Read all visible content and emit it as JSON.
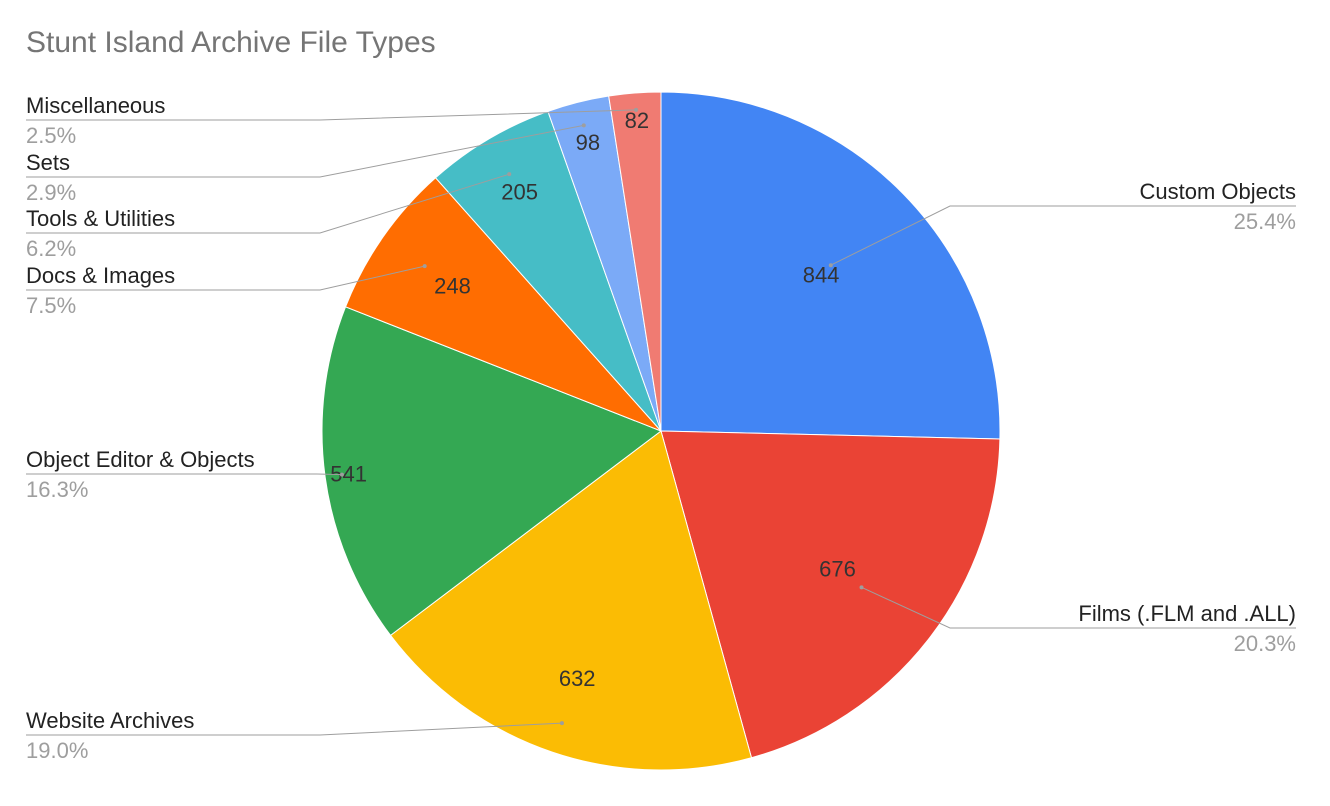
{
  "chart_data": {
    "type": "pie",
    "title": "Stunt Island Archive File Types",
    "start_angle_deg": 0,
    "direction": "clockwise",
    "slices": [
      {
        "label": "Custom Objects",
        "value": 844,
        "percent_label": "25.4%",
        "color": "#4285f4"
      },
      {
        "label": "Films (.FLM and .ALL)",
        "value": 676,
        "percent_label": "20.3%",
        "color": "#ea4335"
      },
      {
        "label": "Website Archives",
        "value": 632,
        "percent_label": "19.0%",
        "color": "#fbbc04"
      },
      {
        "label": "Object Editor & Objects",
        "value": 541,
        "percent_label": "16.3%",
        "color": "#34a853"
      },
      {
        "label": "Docs & Images",
        "value": 248,
        "percent_label": "7.5%",
        "color": "#ff6d01"
      },
      {
        "label": "Tools & Utilities",
        "value": 205,
        "percent_label": "6.2%",
        "color": "#46bdc6"
      },
      {
        "label": "Sets",
        "value": 98,
        "percent_label": "2.9%",
        "color": "#7baaf7"
      },
      {
        "label": "Miscellaneous",
        "value": 82,
        "percent_label": "2.5%",
        "color": "#f07b72"
      }
    ]
  }
}
